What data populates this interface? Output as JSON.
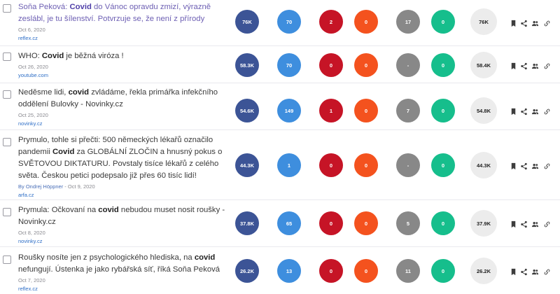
{
  "results": [
    {
      "title_before": "Soňa Peková: ",
      "keyword": "Covid",
      "title_after": " do Vánoc opravdu zmizí, výrazně zeslábl, je tu šílenství. Potvrzuje se, že není z přírody",
      "visited": true,
      "author": "",
      "date": "Oct 6, 2020",
      "domain": "reflex.cz",
      "total": "76K",
      "facebook": "70",
      "twitter": "2",
      "pinterest": "0",
      "reddit": "17",
      "links": "0",
      "engagement": "76K"
    },
    {
      "title_before": "WHO: ",
      "keyword": "Covid",
      "title_after": " je běžná viróza !",
      "visited": false,
      "author": "",
      "date": "Oct 26, 2020",
      "domain": "youtube.com",
      "total": "58.3K",
      "facebook": "70",
      "twitter": "0",
      "pinterest": "0",
      "reddit": "-",
      "links": "0",
      "engagement": "58.4K"
    },
    {
      "title_before": "Neděsme lidi, ",
      "keyword": "covid",
      "title_after": " zvládáme, řekla primářka infekčního oddělení Bulovky - Novinky.cz",
      "visited": false,
      "author": "",
      "date": "Oct 25, 2020",
      "domain": "novinky.cz",
      "total": "54.6K",
      "facebook": "149",
      "twitter": "1",
      "pinterest": "0",
      "reddit": "7",
      "links": "0",
      "engagement": "54.8K"
    },
    {
      "title_before": "Prymulo, tohle si přečti: 500 německých lékařů označilo pandemii ",
      "keyword": "Covid",
      "title_after": " za GLOBÁLNÍ ZLOČIN a hnusný pokus o SVĚTOVOU DIKTATURU. Povstaly tisíce lékařů z celého světa. Českou petici podepsalo již přes 60 tisíc lidí!",
      "visited": false,
      "author": "By Ondrej Höppner",
      "date": " - Oct 9, 2020",
      "domain": "arfa.cz",
      "total": "44.3K",
      "facebook": "1",
      "twitter": "0",
      "pinterest": "0",
      "reddit": "-",
      "links": "0",
      "engagement": "44.3K"
    },
    {
      "title_before": "Prymula: Očkovaní na ",
      "keyword": "covid",
      "title_after": " nebudou muset nosit roušky - Novinky.cz",
      "visited": false,
      "author": "",
      "date": "Oct 8, 2020",
      "domain": "novinky.cz",
      "total": "37.8K",
      "facebook": "65",
      "twitter": "0",
      "pinterest": "0",
      "reddit": "5",
      "links": "0",
      "engagement": "37.9K"
    },
    {
      "title_before": "Roušky nosíte jen z psychologického hlediska, na ",
      "keyword": "covid",
      "title_after": " nefungují. Ústenka je jako rybářská síť, říká Soňa Peková",
      "visited": false,
      "author": "",
      "date": "Oct 7, 2020",
      "domain": "reflex.cz",
      "total": "26.2K",
      "facebook": "13",
      "twitter": "0",
      "pinterest": "0",
      "reddit": "11",
      "links": "0",
      "engagement": "26.2K"
    }
  ],
  "icons": {
    "bookmark": "bookmark-icon",
    "share": "share-icon",
    "users": "users-icon",
    "link": "link-icon"
  },
  "colors": {
    "total": "#3c5496",
    "facebook": "#3e8ede",
    "twitter": "#c61426",
    "pinterest": "#f4521e",
    "reddit": "#888888",
    "links": "#16be8c",
    "engagement": "#ececec"
  }
}
